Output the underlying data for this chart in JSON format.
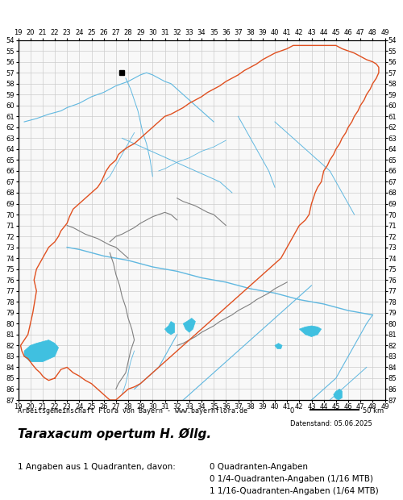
{
  "title": "Taraxacum opertum H. Øllg.",
  "subtitle": "Arbeitsgemeinschaft Flora von Bayern - www.bayernflora.de",
  "date_label": "Datenstand: 05.06.2025",
  "scale_label": "0            50 km",
  "stats_left": "1 Angaben aus 1 Quadranten, davon:",
  "stats_right": [
    "0 Quadranten-Angaben",
    "0 1/4-Quadranten-Angaben (1/16 MTB)",
    "1 1/16-Quadranten-Angaben (1/64 MTB)"
  ],
  "x_ticks": [
    19,
    20,
    21,
    22,
    23,
    24,
    25,
    26,
    27,
    28,
    29,
    30,
    31,
    32,
    33,
    34,
    35,
    36,
    37,
    38,
    39,
    40,
    41,
    42,
    43,
    44,
    45,
    46,
    47,
    48,
    49
  ],
  "y_ticks": [
    54,
    55,
    56,
    57,
    58,
    59,
    60,
    61,
    62,
    63,
    64,
    65,
    66,
    67,
    68,
    69,
    70,
    71,
    72,
    73,
    74,
    75,
    76,
    77,
    78,
    79,
    80,
    81,
    82,
    83,
    84,
    85,
    86,
    87
  ],
  "bg_color": "#ffffff",
  "grid_color": "#cccccc",
  "border_color_red": "#e05020",
  "border_color_gray": "#808080",
  "river_color": "#60b8e0",
  "lake_color": "#40c0e0",
  "occurrence_color": "#000000",
  "map_bg": "#f0f0f0"
}
